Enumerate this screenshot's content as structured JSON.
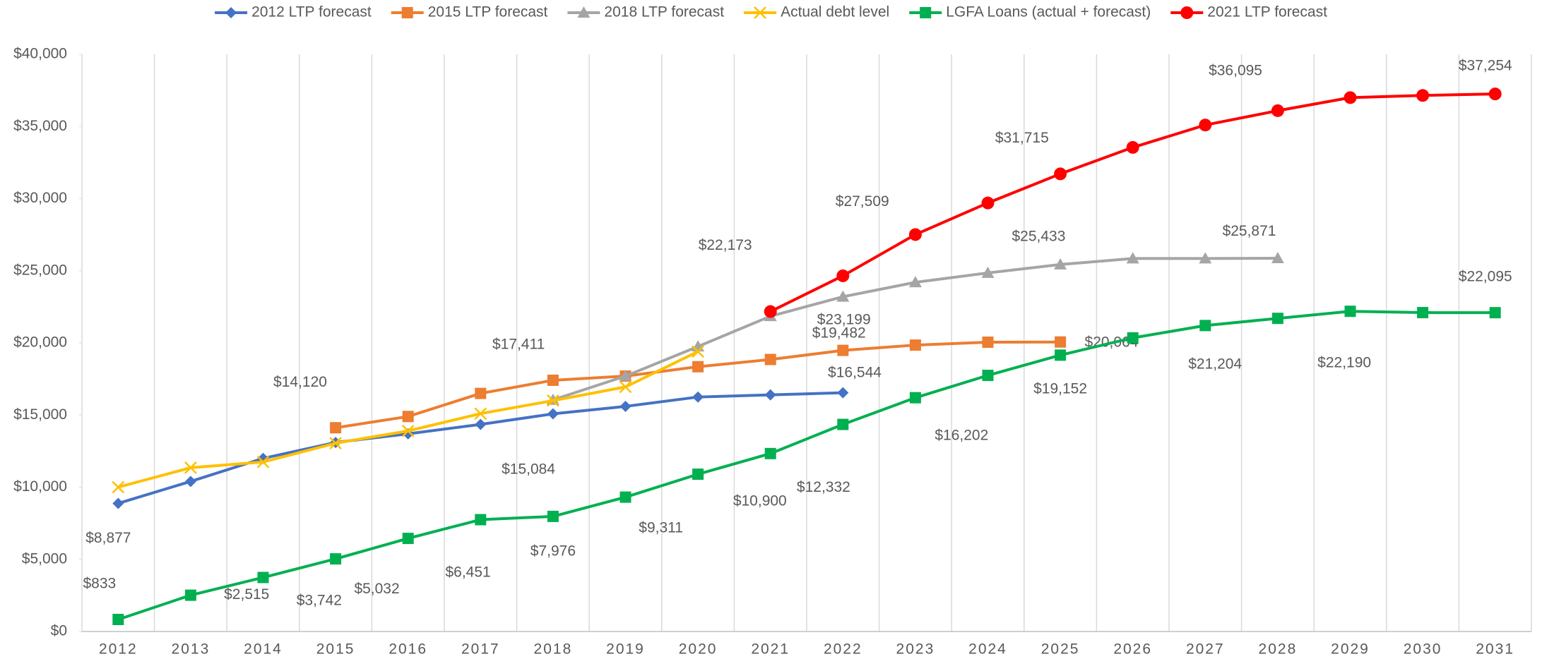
{
  "chart_data": {
    "type": "line",
    "categories": [
      "2012",
      "2013",
      "2014",
      "2015",
      "2016",
      "2017",
      "2018",
      "2019",
      "2020",
      "2021",
      "2022",
      "2023",
      "2024",
      "2025",
      "2026",
      "2027",
      "2028",
      "2029",
      "2030",
      "2031"
    ],
    "ylim": [
      0,
      40000
    ],
    "yticks": [
      {
        "value": 0,
        "label": "$0"
      },
      {
        "value": 5000,
        "label": "$5,000"
      },
      {
        "value": 10000,
        "label": "$10,000"
      },
      {
        "value": 15000,
        "label": "$15,000"
      },
      {
        "value": 20000,
        "label": "$20,000"
      },
      {
        "value": 25000,
        "label": "$25,000"
      },
      {
        "value": 30000,
        "label": "$30,000"
      },
      {
        "value": 35000,
        "label": "$35,000"
      },
      {
        "value": 40000,
        "label": "$40,000"
      }
    ],
    "grid": true,
    "legend": "top",
    "series": [
      {
        "name": "2012 LTP forecast",
        "color": "#4472c4",
        "marker": "diamond",
        "values": [
          8877,
          10400,
          12000,
          13100,
          13700,
          14350,
          15084,
          15600,
          16250,
          16400,
          16544,
          null,
          null,
          null,
          null,
          null,
          null,
          null,
          null,
          null
        ],
        "value_labels": [
          "$8,877",
          null,
          null,
          null,
          null,
          null,
          "$15,084",
          null,
          null,
          null,
          "$16,544",
          null,
          null,
          null,
          null,
          null,
          null,
          null,
          null,
          null
        ]
      },
      {
        "name": "2015 LTP forecast",
        "color": "#ed7d31",
        "marker": "square",
        "values": [
          null,
          null,
          null,
          14120,
          14900,
          16500,
          17411,
          17700,
          18350,
          18850,
          19482,
          19850,
          20050,
          20064,
          null,
          null,
          null,
          null,
          null,
          null
        ],
        "value_labels": [
          null,
          null,
          null,
          "$14,120",
          null,
          null,
          "$17,411",
          null,
          null,
          null,
          "$19,482",
          null,
          null,
          "$20,064",
          null,
          null,
          null,
          null,
          null,
          null
        ]
      },
      {
        "name": "2018 LTP forecast",
        "color": "#a5a5a5",
        "marker": "triangle",
        "values": [
          null,
          null,
          null,
          null,
          null,
          null,
          16050,
          17700,
          19750,
          21850,
          23199,
          24200,
          24850,
          25433,
          25850,
          25850,
          25871,
          null,
          null,
          null
        ],
        "value_labels": [
          null,
          null,
          null,
          null,
          null,
          null,
          null,
          null,
          null,
          null,
          "$23,199",
          null,
          null,
          "$25,433",
          null,
          null,
          "$25,871",
          null,
          null,
          null
        ]
      },
      {
        "name": "Actual debt level",
        "color": "#ffc000",
        "marker": "x",
        "values": [
          10000,
          11350,
          11750,
          13050,
          13900,
          15100,
          16000,
          16950,
          19400,
          null,
          null,
          null,
          null,
          null,
          null,
          null,
          null,
          null,
          null,
          null
        ]
      },
      {
        "name": "LGFA Loans (actual + forecast)",
        "color": "#00b050",
        "marker": "square",
        "values": [
          833,
          2515,
          3742,
          5032,
          6451,
          7750,
          7976,
          9311,
          10900,
          12332,
          14350,
          16202,
          17750,
          19152,
          20350,
          21204,
          21700,
          22190,
          22100,
          22095
        ],
        "value_labels": [
          "$833",
          "$2,515",
          "$3,742",
          "$5,032",
          "$6,451",
          null,
          "$7,976",
          "$9,311",
          "$10,900",
          "$12,332",
          null,
          "$16,202",
          null,
          "$19,152",
          null,
          "$21,204",
          null,
          "$22,190",
          null,
          "$22,095"
        ]
      },
      {
        "name": "2021 LTP forecast",
        "color": "#ff0000",
        "marker": "circle",
        "values": [
          null,
          null,
          null,
          null,
          null,
          null,
          null,
          null,
          null,
          22173,
          24650,
          27509,
          29700,
          31715,
          33550,
          35100,
          36095,
          37000,
          37150,
          37254
        ],
        "value_labels": [
          null,
          null,
          null,
          null,
          null,
          null,
          null,
          null,
          null,
          "$22,173",
          null,
          "$27,509",
          null,
          "$31,715",
          null,
          null,
          "$36,095",
          null,
          null,
          "$37,254"
        ]
      }
    ]
  }
}
